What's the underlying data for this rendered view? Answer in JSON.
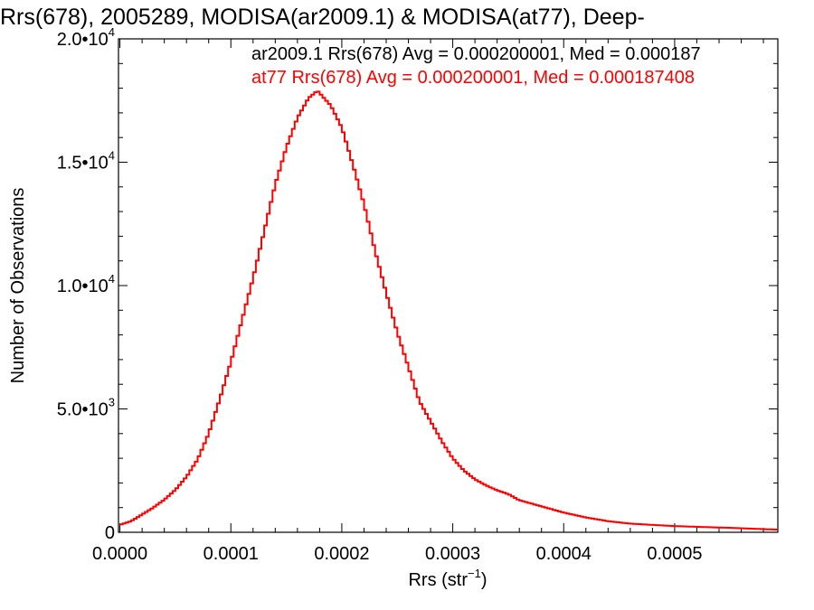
{
  "chart_data": {
    "type": "line",
    "title": "Rrs(678), 2005289, MODISA(ar2009.1) & MODISA(at77), Deep-",
    "xlabel_main": "Rrs (str",
    "xlabel_exp": "−1",
    "xlabel_end": ")",
    "ylabel": "Number of Observations",
    "xlim": [
      -1.3e-06,
      0.000593
    ],
    "ylim": [
      0,
      20000
    ],
    "x_ticks": [
      {
        "value": 0.0,
        "label": "0.0000"
      },
      {
        "value": 0.0001,
        "label": "0.0001"
      },
      {
        "value": 0.0002,
        "label": "0.0002"
      },
      {
        "value": 0.0003,
        "label": "0.0003"
      },
      {
        "value": 0.0004,
        "label": "0.0004"
      },
      {
        "value": 0.0005,
        "label": "0.0005"
      }
    ],
    "y_ticks": [
      {
        "value": 0,
        "mant": "0",
        "exp": ""
      },
      {
        "value": 5000,
        "mant": "5.0•10",
        "exp": "3"
      },
      {
        "value": 10000,
        "mant": "1.0•10",
        "exp": "4"
      },
      {
        "value": 15000,
        "mant": "1.5•10",
        "exp": "4"
      },
      {
        "value": 20000,
        "mant": "2.0•10",
        "exp": "4"
      }
    ],
    "annotations": [
      {
        "text": "ar2009.1 Rrs(678) Avg = 0.000200001, Med = 0.000187",
        "color": "#000000"
      },
      {
        "text": "at77 Rrs(678) Avg = 0.000200001, Med = 0.000187408",
        "color": "#ff0000"
      }
    ],
    "series": [
      {
        "color": "#ff0000",
        "points": [
          [
            0.0,
            300
          ],
          [
            1e-05,
            450
          ],
          [
            2e-05,
            720
          ],
          [
            3e-05,
            1000
          ],
          [
            4e-05,
            1320
          ],
          [
            5e-05,
            1720
          ],
          [
            6e-05,
            2250
          ],
          [
            7e-05,
            2950
          ],
          [
            8e-05,
            4000
          ],
          [
            9e-05,
            5400
          ],
          [
            0.0001,
            6900
          ],
          [
            0.00011,
            8600
          ],
          [
            0.00012,
            10300
          ],
          [
            0.00013,
            12200
          ],
          [
            0.00014,
            14100
          ],
          [
            0.00015,
            15600
          ],
          [
            0.00016,
            16800
          ],
          [
            0.00017,
            17600
          ],
          [
            0.000178,
            17900
          ],
          [
            0.00019,
            17300
          ],
          [
            0.0002,
            16400
          ],
          [
            0.00021,
            14900
          ],
          [
            0.00022,
            13300
          ],
          [
            0.00023,
            11400
          ],
          [
            0.00024,
            9700
          ],
          [
            0.00025,
            8100
          ],
          [
            0.00026,
            6700
          ],
          [
            0.00027,
            5300
          ],
          [
            0.00028,
            4500
          ],
          [
            0.00029,
            3700
          ],
          [
            0.0003,
            3000
          ],
          [
            0.00031,
            2500
          ],
          [
            0.00032,
            2150
          ],
          [
            0.00033,
            1900
          ],
          [
            0.00034,
            1700
          ],
          [
            0.00035,
            1550
          ],
          [
            0.00036,
            1300
          ],
          [
            0.00038,
            1050
          ],
          [
            0.0004,
            800
          ],
          [
            0.00042,
            600
          ],
          [
            0.00044,
            450
          ],
          [
            0.00046,
            350
          ],
          [
            0.00048,
            300
          ],
          [
            0.0005,
            250
          ],
          [
            0.00052,
            220
          ],
          [
            0.00055,
            180
          ],
          [
            0.00059,
            110
          ]
        ]
      }
    ]
  }
}
